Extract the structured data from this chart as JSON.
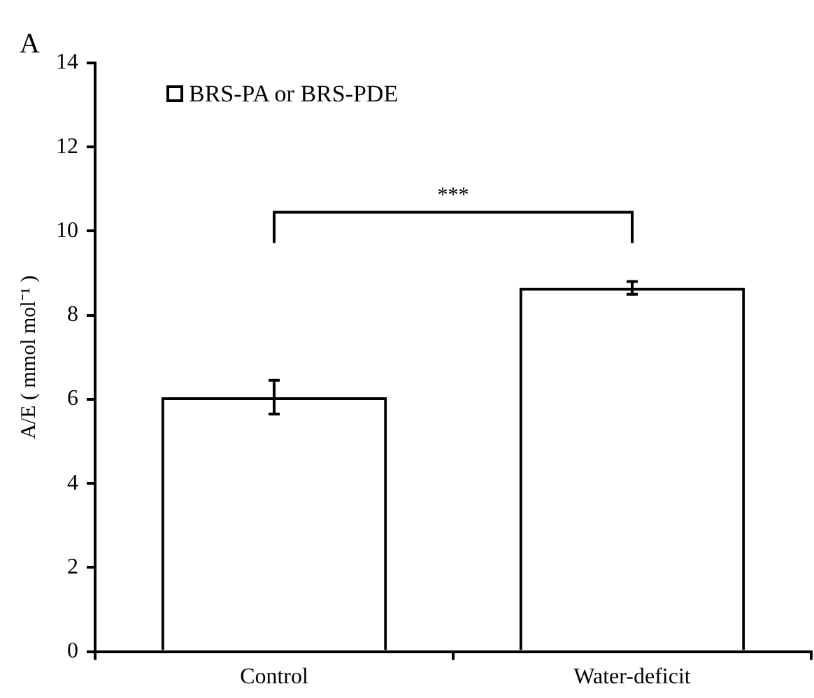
{
  "chart_data": {
    "type": "bar",
    "ylabel": "A/E ( mmol mol⁻¹ )",
    "categories": [
      "Control",
      "Water-deficit"
    ],
    "series": [
      {
        "name": "BRS-PA or BRS-PDE",
        "color": "#000000",
        "values": [
          6.05,
          8.65
        ],
        "errors": [
          0.4,
          0.15
        ]
      }
    ],
    "ylim": [
      0,
      14
    ],
    "yticks": [
      0,
      2,
      4,
      6,
      8,
      10,
      12,
      14
    ],
    "grid": false,
    "legend": "top left",
    "annotations": [
      "A",
      "***"
    ]
  }
}
